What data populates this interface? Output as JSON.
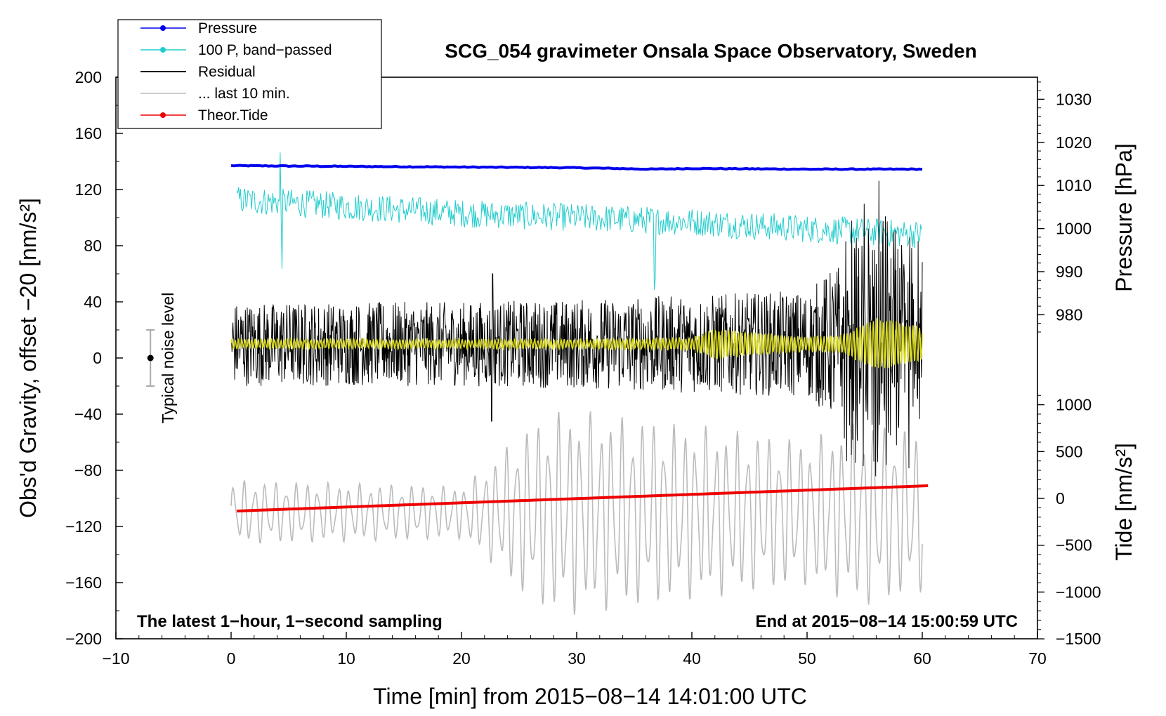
{
  "chart_data": {
    "type": "line",
    "title": "SCG_054 gravimeter Onsala Space Observatory, Sweden",
    "xlabel": "Time [min] from 2015−08−14 14:01:00 UTC",
    "ylabel_left": "Obs'd Gravity, offset −20 [nm/s²]",
    "ylabel_right_top": "Pressure [hPa]",
    "ylabel_right_bottom": "Tide [nm/s²]",
    "xlim": [
      -10,
      70
    ],
    "ylim": [
      -200,
      200
    ],
    "x_ticks": [
      -10,
      0,
      10,
      20,
      30,
      40,
      50,
      60,
      70
    ],
    "x_tick_labels": [
      "−10",
      "0",
      "10",
      "20",
      "30",
      "40",
      "50",
      "60",
      "70"
    ],
    "y_ticks": [
      -200,
      -160,
      -120,
      -80,
      -40,
      0,
      40,
      80,
      120,
      160,
      200
    ],
    "y_tick_labels": [
      "−200",
      "−160",
      "−120",
      "−80",
      "−40",
      "0",
      "40",
      "80",
      "120",
      "160",
      "200"
    ],
    "pressure_axis": {
      "ticks": [
        980,
        990,
        1000,
        1010,
        1020,
        1030
      ],
      "tick_labels": [
        "980",
        "990",
        "1000",
        "1010",
        "1020",
        "1030"
      ],
      "left_equiv_at_1030": 184.3,
      "left_per_unit": 3.07
    },
    "tide_axis": {
      "ticks": [
        -1500,
        -1000,
        -500,
        0,
        500,
        1000
      ],
      "tick_labels": [
        "−1500",
        "−1000",
        "−500",
        "0",
        "500",
        "1000"
      ],
      "left_equiv_at_0": -100,
      "left_per_unit": 0.0667
    },
    "annotation_left": "The latest 1−hour, 1−second sampling",
    "annotation_right": "End at 2015−08−14 15:00:59 UTC",
    "noise_label": "Typical noise level",
    "noise_bar": {
      "x": -7,
      "center": 0,
      "half_range": 20
    },
    "legend": [
      {
        "label": "Pressure",
        "color": "#0000ee",
        "marker": true
      },
      {
        "label": "100 P, band−passed",
        "color": "#22cccc",
        "marker": true
      },
      {
        "label": "Residual",
        "color": "#000000",
        "marker": false
      },
      {
        "label": "... last 10 min.",
        "color": "#bbbbbb",
        "marker": false
      },
      {
        "label": "Theor.Tide",
        "color": "#ee0000",
        "marker": true
      }
    ],
    "series": [
      {
        "name": "Pressure",
        "color": "#0000ee",
        "x": [
          0,
          10,
          20,
          30,
          36.5,
          40,
          50,
          60
        ],
        "values": [
          137,
          136.5,
          136,
          135.5,
          134.5,
          135,
          134.5,
          134.5
        ]
      },
      {
        "name": "100 P, band−passed",
        "color": "#22cccc",
        "x": [
          0,
          10,
          20,
          30,
          40,
          50,
          60
        ],
        "values": [
          113,
          108,
          103,
          100,
          97,
          92,
          88
        ],
        "amplitude": 10
      },
      {
        "name": "Residual",
        "color": "#000000",
        "x": [
          0,
          10,
          20,
          30,
          40,
          50,
          53,
          56,
          60
        ],
        "values": [
          10,
          10,
          10,
          10,
          10,
          10,
          10,
          10,
          10
        ],
        "amplitude": [
          30,
          30,
          30,
          32,
          35,
          38,
          60,
          75,
          50
        ]
      },
      {
        "name": "Residual (filtered)",
        "color": "#d8d820",
        "x": [
          0,
          10,
          20,
          30,
          40,
          42,
          45,
          50,
          53,
          56,
          60
        ],
        "values": [
          10,
          10,
          10,
          10,
          10,
          10,
          10,
          10,
          10,
          10,
          10
        ],
        "amplitude": [
          3,
          3,
          3,
          3,
          4,
          10,
          8,
          5,
          6,
          18,
          12
        ]
      },
      {
        "name": "... last 10 min.",
        "color": "#bbbbbb",
        "x": [
          0,
          10,
          20,
          22,
          25,
          28,
          30,
          35,
          40,
          45,
          50,
          55,
          60
        ],
        "values": [
          -130,
          -130,
          -130,
          -130,
          -130,
          -130,
          -130,
          -130,
          -130,
          -130,
          -130,
          -130,
          -130
        ],
        "amplitude": [
          22,
          20,
          18,
          30,
          55,
          70,
          70,
          65,
          60,
          55,
          50,
          65,
          55
        ]
      },
      {
        "name": "Theor.Tide",
        "color": "#ee0000",
        "x": [
          0.5,
          60.5
        ],
        "values": [
          -109,
          -91
        ]
      }
    ]
  }
}
